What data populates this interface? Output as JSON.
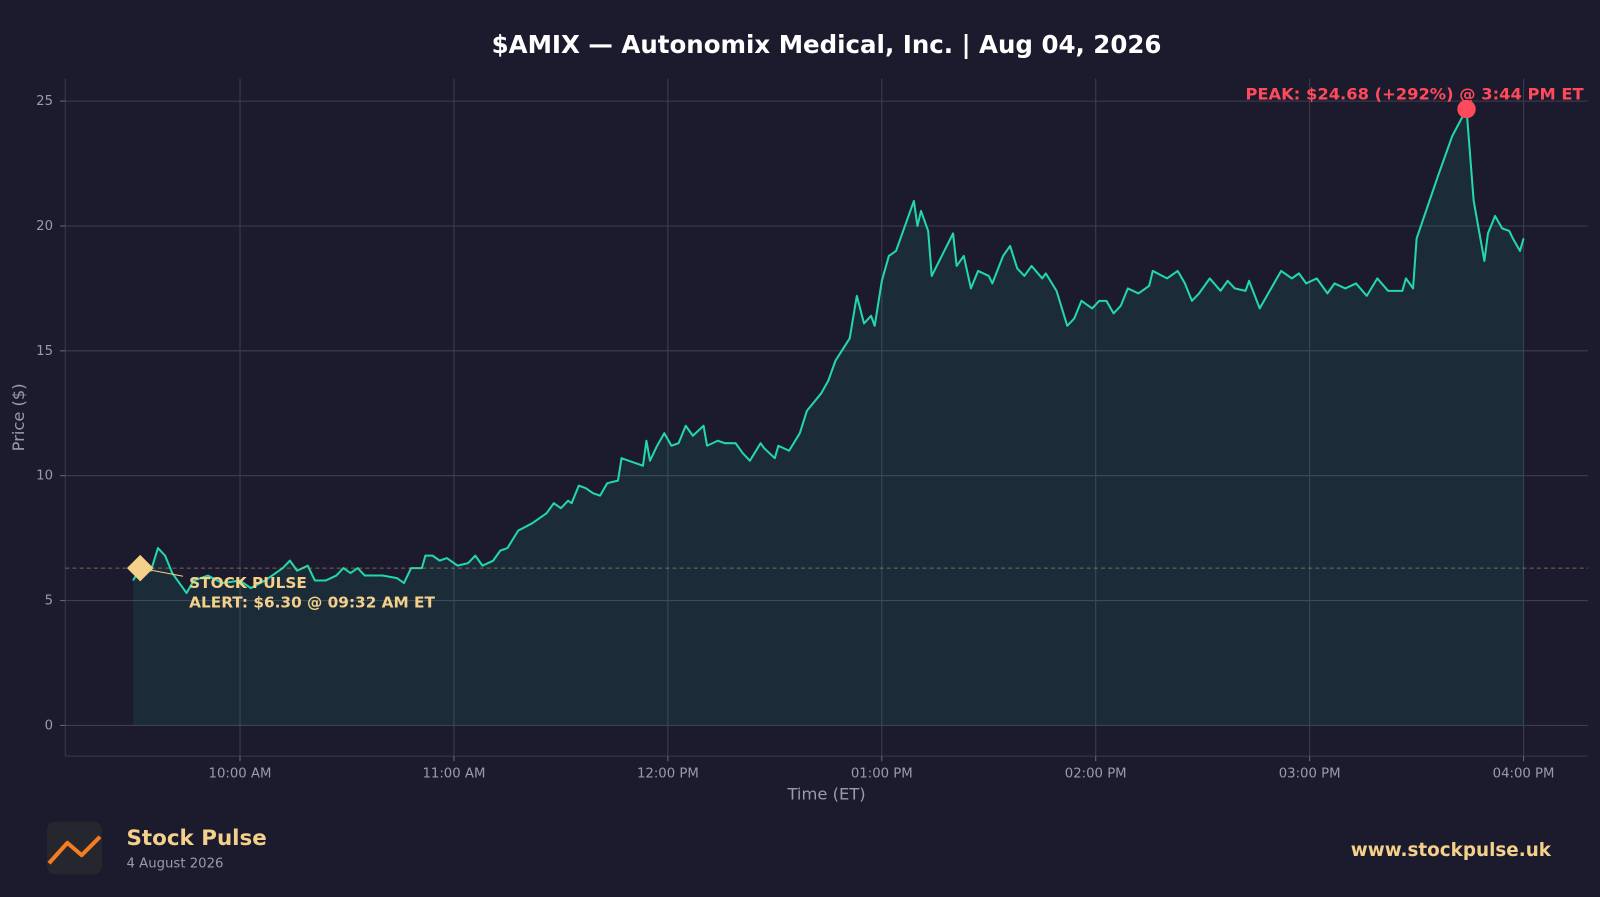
{
  "chart_data": {
    "type": "line",
    "title": "$AMIX — Autonomix Medical, Inc.  |  Aug 04, 2026",
    "x_label": "Time (ET)",
    "y_label": "Price ($)",
    "x": [
      "09:30",
      "09:32",
      "09:35",
      "09:37",
      "09:39",
      "09:41",
      "09:45",
      "09:47",
      "09:51",
      "09:55",
      "10:00",
      "10:03",
      "10:07",
      "10:12",
      "10:14",
      "10:16",
      "10:19",
      "10:21",
      "10:24",
      "10:27",
      "10:29",
      "10:31",
      "10:33",
      "10:35",
      "10:40",
      "10:44",
      "10:46",
      "10:48",
      "10:51",
      "10:52",
      "10:54",
      "10:56",
      "10:58",
      "11:01",
      "11:04",
      "11:06",
      "11:08",
      "11:11",
      "11:13",
      "11:15",
      "11:18",
      "11:22",
      "11:26",
      "11:28",
      "11:30",
      "11:32",
      "11:33",
      "11:35",
      "11:37",
      "11:39",
      "11:41",
      "11:43",
      "11:46",
      "11:47",
      "11:53",
      "11:54",
      "11:55",
      "11:57",
      "11:59",
      "12:01",
      "12:03",
      "12:05",
      "12:07",
      "12:10",
      "12:11",
      "12:14",
      "12:16",
      "12:19",
      "12:21",
      "12:23",
      "12:26",
      "12:27",
      "12:30",
      "12:31",
      "12:34",
      "12:37",
      "12:39",
      "12:43",
      "12:45",
      "12:47",
      "12:51",
      "12:53",
      "12:55",
      "12:57",
      "12:58",
      "13:00",
      "13:02",
      "13:04",
      "13:07",
      "13:09",
      "13:10",
      "13:11",
      "13:13",
      "13:14",
      "13:20",
      "13:21",
      "13:23",
      "13:25",
      "13:27",
      "13:30",
      "13:31",
      "13:34",
      "13:36",
      "13:38",
      "13:40",
      "13:42",
      "13:45",
      "13:46",
      "13:49",
      "13:52",
      "13:54",
      "13:56",
      "13:59",
      "14:01",
      "14:03",
      "14:05",
      "14:07",
      "14:09",
      "14:12",
      "14:15",
      "14:16",
      "14:20",
      "14:23",
      "14:25",
      "14:27",
      "14:29",
      "14:32",
      "14:35",
      "14:37",
      "14:39",
      "14:42",
      "14:43",
      "14:46",
      "14:48",
      "14:52",
      "14:55",
      "14:57",
      "14:59",
      "15:02",
      "15:05",
      "15:07",
      "15:10",
      "15:13",
      "15:16",
      "15:19",
      "15:22",
      "15:26",
      "15:27",
      "15:29",
      "15:30",
      "15:36",
      "15:40",
      "15:44",
      "15:46",
      "15:49",
      "15:50",
      "15:52",
      "15:54",
      "15:56",
      "15:57",
      "15:59",
      "16:00"
    ],
    "series": [
      {
        "name": "AMIX",
        "color": "#22d8a8",
        "values": [
          5.8,
          6.3,
          6.2,
          7.1,
          6.8,
          6.1,
          5.3,
          5.8,
          6.0,
          5.7,
          5.8,
          5.5,
          5.8,
          6.3,
          6.6,
          6.2,
          6.4,
          5.8,
          5.8,
          6.0,
          6.3,
          6.1,
          6.3,
          6.0,
          6.0,
          5.9,
          5.7,
          6.3,
          6.3,
          6.8,
          6.8,
          6.6,
          6.7,
          6.4,
          6.5,
          6.8,
          6.4,
          6.6,
          7.0,
          7.1,
          7.8,
          8.1,
          8.5,
          8.9,
          8.7,
          9.0,
          8.9,
          9.6,
          9.5,
          9.3,
          9.2,
          9.7,
          9.8,
          10.7,
          10.4,
          11.4,
          10.6,
          11.2,
          11.7,
          11.2,
          11.3,
          12.0,
          11.6,
          12.0,
          11.2,
          11.4,
          11.3,
          11.3,
          10.9,
          10.6,
          11.3,
          11.1,
          10.7,
          11.2,
          11.0,
          11.7,
          12.6,
          13.3,
          13.8,
          14.6,
          15.5,
          17.2,
          16.1,
          16.4,
          16.0,
          17.8,
          18.8,
          19.0,
          20.2,
          21.0,
          20.0,
          20.6,
          19.8,
          18.0,
          19.7,
          18.4,
          18.8,
          17.5,
          18.2,
          18.0,
          17.7,
          18.8,
          19.2,
          18.3,
          18.0,
          18.4,
          17.9,
          18.1,
          17.4,
          16.0,
          16.3,
          17.0,
          16.7,
          17.0,
          17.0,
          16.5,
          16.8,
          17.5,
          17.3,
          17.6,
          18.2,
          17.9,
          18.2,
          17.7,
          17.0,
          17.3,
          17.9,
          17.4,
          17.8,
          17.5,
          17.4,
          17.8,
          16.7,
          17.2,
          18.2,
          17.9,
          18.1,
          17.7,
          17.9,
          17.3,
          17.7,
          17.5,
          17.7,
          17.2,
          17.9,
          17.4,
          17.4,
          17.9,
          17.5,
          19.5,
          22.0,
          23.6,
          24.68,
          21.0,
          18.6,
          19.7,
          20.4,
          19.9,
          19.8,
          19.5,
          19.0,
          19.5
        ]
      }
    ],
    "xlim": [
      "09:11",
      "16:18"
    ],
    "xticks": [
      {
        "value": "10:00",
        "label": "10:00 AM"
      },
      {
        "value": "11:00",
        "label": "11:00 AM"
      },
      {
        "value": "12:00",
        "label": "12:00 PM"
      },
      {
        "value": "13:00",
        "label": "01:00 PM"
      },
      {
        "value": "14:00",
        "label": "02:00 PM"
      },
      {
        "value": "15:00",
        "label": "03:00 PM"
      },
      {
        "value": "16:00",
        "label": "04:00 PM"
      }
    ],
    "ylim": [
      -1.23,
      25.9
    ],
    "yticks": [
      0,
      5,
      10,
      15,
      20,
      25
    ],
    "grid": true,
    "alert": {
      "time": "09:32",
      "price": 6.3,
      "color": "#f5d08a",
      "label": [
        "STOCK PULSE",
        "ALERT: $6.30 @ 09:32 AM ET"
      ]
    },
    "peak": {
      "time": "15:44",
      "price": 24.68,
      "color": "#ff4a5c",
      "label": "PEAK: $24.68 (+292%) @ 3:44 PM ET"
    }
  },
  "footer": {
    "brand": "Stock Pulse",
    "date": "4 August 2026",
    "url": "www.stockpulse.uk"
  }
}
